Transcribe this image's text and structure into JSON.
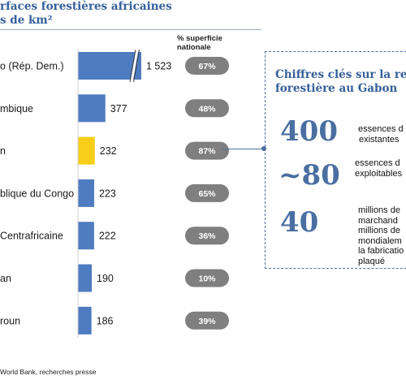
{
  "header": {
    "title": "rfaces forestières africaines",
    "subtitle": "s de km²",
    "pct_heading": "% superficie nationale"
  },
  "chart_data": {
    "type": "bar",
    "orientation": "horizontal",
    "title": "rfaces forestières africaines",
    "subtitle": "s de km²",
    "categories": [
      "o (Rép. Dem.)",
      "mbique",
      "n",
      "blique du Congo",
      "Centrafricaine",
      "an",
      "roun"
    ],
    "values": [
      1523,
      377,
      232,
      223,
      222,
      190,
      186
    ],
    "value_labels": [
      "1 523",
      "377",
      "232",
      "223",
      "222",
      "190",
      "186"
    ],
    "national_share": [
      "67%",
      "48%",
      "87%",
      "65%",
      "36%",
      "10%",
      "39%"
    ],
    "highlight_index": 2,
    "axis_break": true,
    "colors": {
      "bar": "#4f7bc0",
      "highlight": "#f7cf1a",
      "pill": "#7f7f7f"
    }
  },
  "keybox": {
    "title_line1": "Chiffres clés sur la res",
    "title_line2": "forestière au Gabon",
    "facts": [
      {
        "number": "400",
        "lines": [
          "essences d",
          "existantes"
        ]
      },
      {
        "number": "~80",
        "lines": [
          "essences d",
          "exploitables"
        ]
      },
      {
        "number": "40",
        "lines": [
          "millions de",
          "marchand",
          "millions de",
          "mondialem",
          "la fabricatio",
          "plaqué"
        ]
      }
    ]
  },
  "source": "World Bank, recherches presse"
}
